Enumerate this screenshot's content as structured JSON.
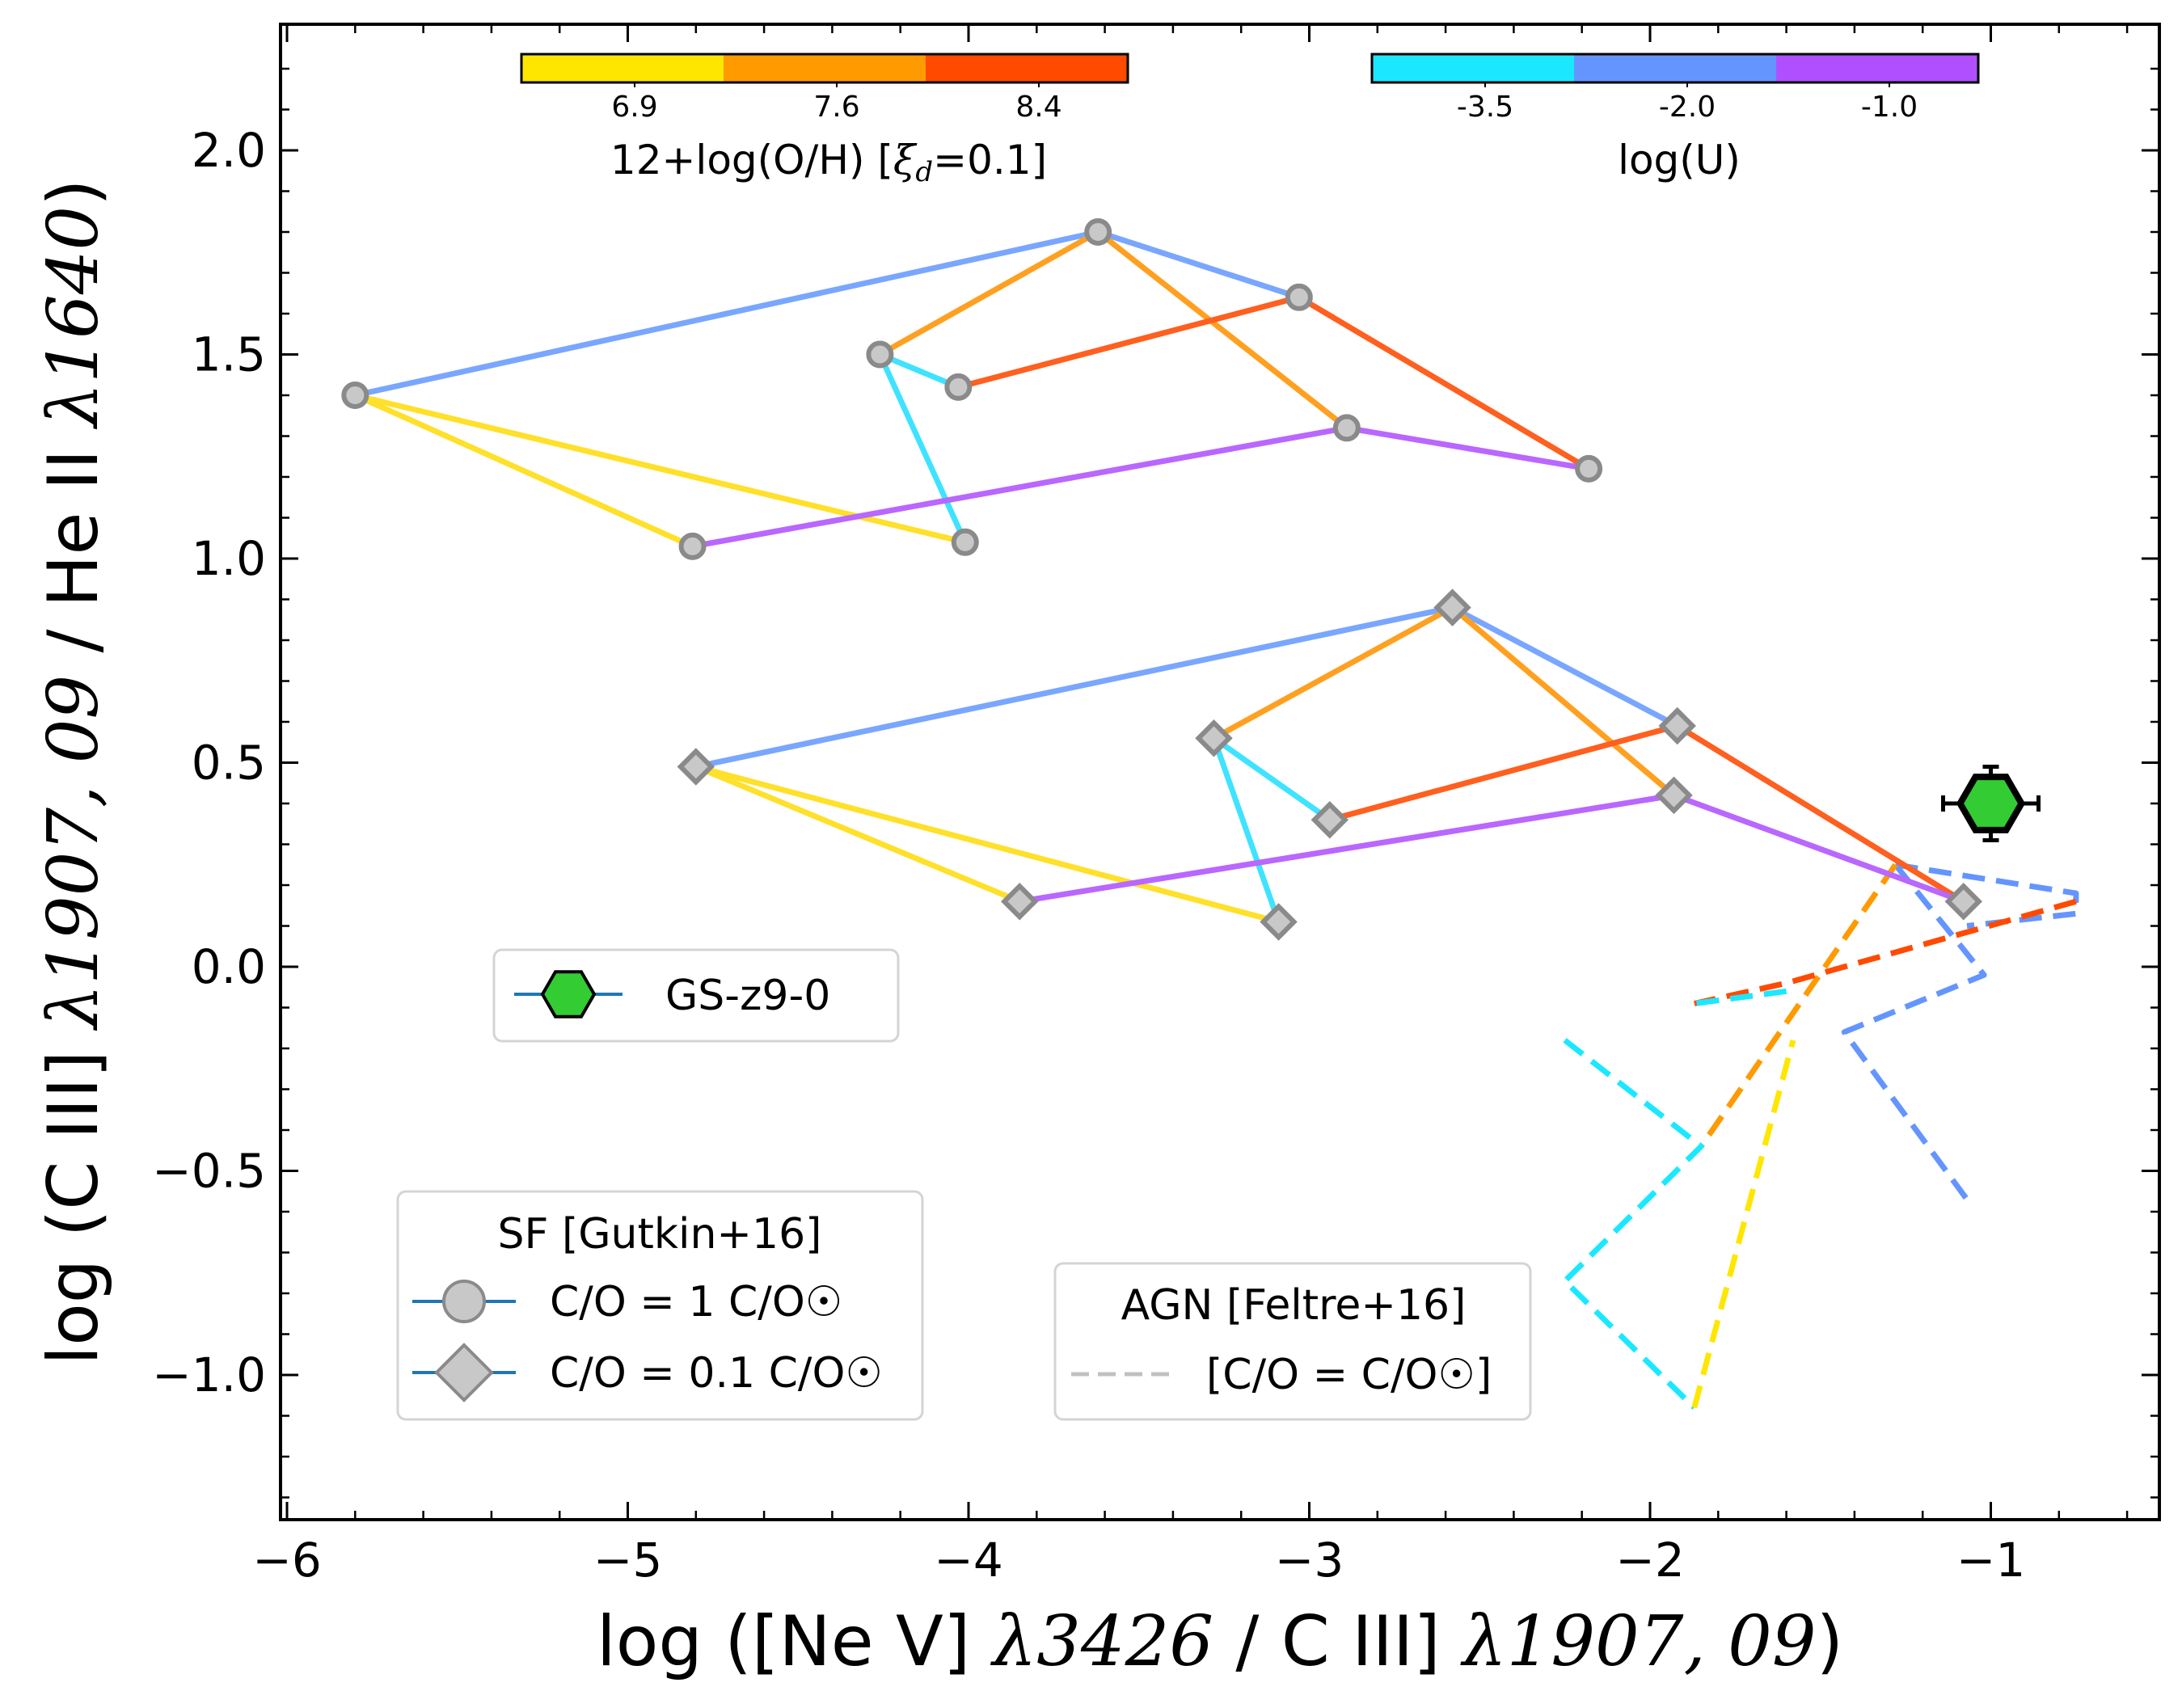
{
  "chart_data": {
    "type": "line",
    "xlabel_parts": [
      "log ([Ne V] ",
      "λ3426",
      " / C III] ",
      "λ1907, 09",
      ")"
    ],
    "ylabel_parts": [
      "log (C III] ",
      "λ1907, 09",
      " / He II ",
      "λ1640",
      ")"
    ],
    "xlim": [
      -6.0,
      -0.5
    ],
    "ylim": [
      -1.35,
      2.3
    ],
    "x_ticks": [
      -6,
      -5,
      -4,
      -3,
      -2,
      -1
    ],
    "x_tick_labels": [
      "−6",
      "−5",
      "−4",
      "−3",
      "−2",
      "−1"
    ],
    "y_ticks": [
      -1.0,
      -0.5,
      0.0,
      0.5,
      1.0,
      1.5,
      2.0
    ],
    "y_tick_labels": [
      "−1.0",
      "−0.5",
      "0.0",
      "0.5",
      "1.0",
      "1.5",
      "2.0"
    ],
    "colorbars": [
      {
        "label_main": "12+log(O/H) [",
        "label_sym": "ξ",
        "label_sub": "d",
        "label_end": "=0.1]",
        "colors": [
          "#ffe600",
          "#ff9a00",
          "#ff4a00"
        ],
        "tick_labels": [
          "6.9",
          "7.6",
          "8.4"
        ]
      },
      {
        "label": "log(U)",
        "colors": [
          "#1be8ff",
          "#6495ff",
          "#b04fff"
        ],
        "tick_labels": [
          "-3.5",
          "-2.0",
          "-1.0"
        ]
      }
    ],
    "sf_models": [
      {
        "name": "C/O = 1 C/O☉",
        "marker": "circle",
        "lines": [
          {
            "color": "#79a6ff",
            "points": [
              [
                -5.8,
                1.4
              ],
              [
                -3.62,
                1.8
              ],
              [
                -3.03,
                1.64
              ]
            ]
          },
          {
            "color": "#ffa020",
            "points": [
              [
                -4.26,
                1.5
              ],
              [
                -3.62,
                1.8
              ],
              [
                -2.89,
                1.32
              ]
            ]
          },
          {
            "color": "#ff5f1f",
            "points": [
              [
                -4.03,
                1.42
              ],
              [
                -3.03,
                1.64
              ],
              [
                -2.18,
                1.22
              ]
            ]
          },
          {
            "color": "#3fe3ff",
            "points": [
              [
                -4.26,
                1.5
              ],
              [
                -4.03,
                1.42
              ]
            ]
          },
          {
            "color": "#3fe3ff",
            "points": [
              [
                -4.26,
                1.5
              ],
              [
                -4.01,
                1.04
              ]
            ]
          },
          {
            "color": "#ffe02a",
            "points": [
              [
                -5.8,
                1.4
              ],
              [
                -4.81,
                1.03
              ]
            ]
          },
          {
            "color": "#ffe02a",
            "points": [
              [
                -5.8,
                1.4
              ],
              [
                -4.01,
                1.04
              ]
            ]
          },
          {
            "color": "#b967ff",
            "points": [
              [
                -4.81,
                1.03
              ],
              [
                -2.89,
                1.32
              ],
              [
                -2.18,
                1.22
              ]
            ]
          }
        ],
        "markers": [
          [
            -5.8,
            1.4
          ],
          [
            -3.62,
            1.8
          ],
          [
            -3.03,
            1.64
          ],
          [
            -4.26,
            1.5
          ],
          [
            -4.03,
            1.42
          ],
          [
            -2.89,
            1.32
          ],
          [
            -2.18,
            1.22
          ],
          [
            -4.81,
            1.03
          ],
          [
            -4.01,
            1.04
          ]
        ]
      },
      {
        "name": "C/O = 0.1 C/O☉",
        "marker": "diamond",
        "lines": [
          {
            "color": "#79a6ff",
            "points": [
              [
                -4.8,
                0.49
              ],
              [
                -2.58,
                0.88
              ],
              [
                -1.92,
                0.59
              ]
            ]
          },
          {
            "color": "#ffa020",
            "points": [
              [
                -3.28,
                0.56
              ],
              [
                -2.58,
                0.88
              ],
              [
                -1.93,
                0.42
              ]
            ]
          },
          {
            "color": "#ff5f1f",
            "points": [
              [
                -2.94,
                0.36
              ],
              [
                -1.92,
                0.59
              ],
              [
                -1.08,
                0.16
              ]
            ]
          },
          {
            "color": "#3fe3ff",
            "points": [
              [
                -3.28,
                0.56
              ],
              [
                -2.94,
                0.36
              ]
            ]
          },
          {
            "color": "#3fe3ff",
            "points": [
              [
                -3.28,
                0.56
              ],
              [
                -3.09,
                0.11
              ]
            ]
          },
          {
            "color": "#ffe02a",
            "points": [
              [
                -4.8,
                0.49
              ],
              [
                -3.85,
                0.16
              ]
            ]
          },
          {
            "color": "#ffe02a",
            "points": [
              [
                -4.8,
                0.49
              ],
              [
                -3.09,
                0.11
              ]
            ]
          },
          {
            "color": "#b967ff",
            "points": [
              [
                -3.85,
                0.16
              ],
              [
                -1.93,
                0.42
              ],
              [
                -1.08,
                0.16
              ]
            ]
          }
        ],
        "markers": [
          [
            -4.8,
            0.49
          ],
          [
            -2.58,
            0.88
          ],
          [
            -1.92,
            0.59
          ],
          [
            -3.28,
            0.56
          ],
          [
            -2.94,
            0.36
          ],
          [
            -1.93,
            0.42
          ],
          [
            -1.08,
            0.16
          ],
          [
            -3.85,
            0.16
          ],
          [
            -3.09,
            0.11
          ]
        ]
      }
    ],
    "agn_models": {
      "name": "[C/O = C/O☉]",
      "lines": [
        {
          "color": "#6495ff",
          "points": [
            [
              -1.28,
              0.25
            ],
            [
              -0.75,
              0.18
            ],
            [
              -0.75,
              0.13
            ],
            [
              -1.07,
              0.1
            ]
          ]
        },
        {
          "color": "#6495ff",
          "points": [
            [
              -1.28,
              0.25
            ],
            [
              -1.02,
              -0.02
            ],
            [
              -1.43,
              -0.16
            ],
            [
              -1.07,
              -0.57
            ]
          ]
        },
        {
          "color": "#ff9a00",
          "points": [
            [
              -1.28,
              0.25
            ],
            [
              -1.85,
              -0.44
            ]
          ]
        },
        {
          "color": "#ff4a00",
          "points": [
            [
              -0.75,
              0.16
            ],
            [
              -1.6,
              -0.04
            ],
            [
              -1.87,
              -0.09
            ]
          ]
        },
        {
          "color": "#1be8ff",
          "points": [
            [
              -1.6,
              -0.06
            ],
            [
              -1.87,
              -0.09
            ]
          ]
        },
        {
          "color": "#1be8ff",
          "points": [
            [
              -2.25,
              -0.18
            ],
            [
              -1.85,
              -0.44
            ],
            [
              -2.25,
              -0.77
            ],
            [
              -1.87,
              -1.08
            ]
          ]
        },
        {
          "color": "#ffe600",
          "points": [
            [
              -1.87,
              -1.08
            ],
            [
              -1.58,
              -0.18
            ]
          ]
        }
      ]
    },
    "observations": [
      {
        "name": "GS-z9-0",
        "x": -1.0,
        "y": 0.4,
        "xerr": 0.14,
        "yerr": 0.09,
        "color": "#33cc33"
      }
    ],
    "legends": {
      "obs_label": "GS-z9-0",
      "sf_title": "SF [Gutkin+16]",
      "sf_items": [
        "C/O = 1 C/O☉",
        "C/O = 0.1 C/O☉"
      ],
      "agn_title": "AGN [Feltre+16]",
      "agn_items": [
        "[C/O = C/O☉]"
      ]
    }
  }
}
